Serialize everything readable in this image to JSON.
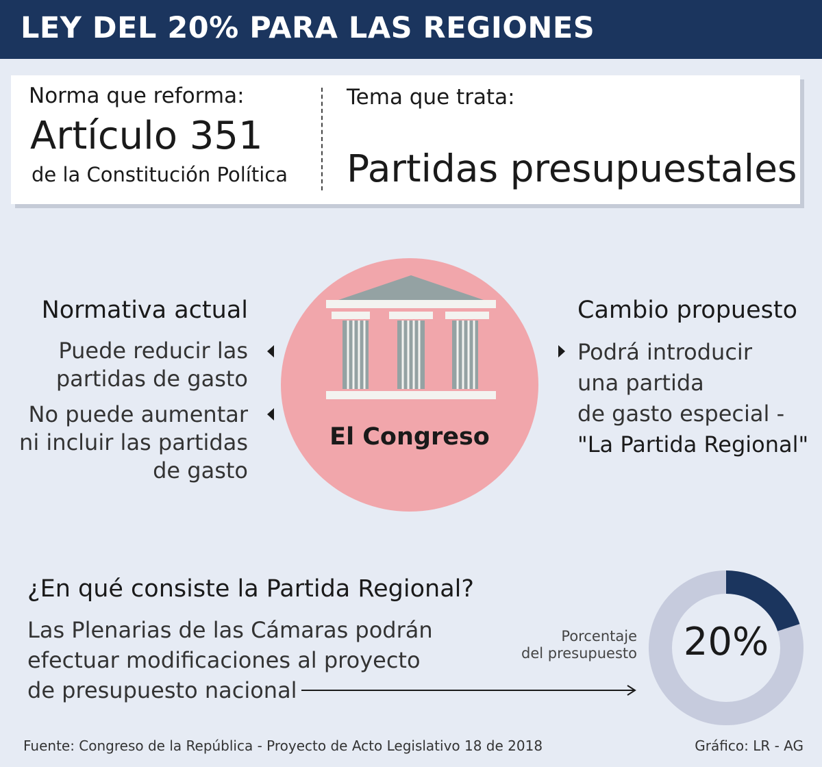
{
  "header": {
    "title": "LEY DEL 20% PARA LAS REGIONES"
  },
  "norma": {
    "label": "Norma que reforma:",
    "value": "Artículo 351",
    "sub": "de la Constitución Política"
  },
  "tema": {
    "label": "Tema que trata:",
    "value": "Partidas presupuestales"
  },
  "center": {
    "label": "El Congreso",
    "icon": "congress-building-icon"
  },
  "normativa_actual": {
    "title": "Normativa actual",
    "items": [
      {
        "lines": [
          "Puede reducir las",
          "partidas de gasto"
        ]
      },
      {
        "lines": [
          "No puede aumentar",
          "ni incluir las partidas",
          "de gasto"
        ]
      }
    ]
  },
  "cambio_propuesto": {
    "title": "Cambio propuesto",
    "lines": [
      "Podrá introducir",
      "una partida",
      "de gasto especial -",
      "\"La Partida Regional\""
    ]
  },
  "partida_regional": {
    "question": "¿En qué consiste la Partida Regional?",
    "lines": [
      "Las Plenarias de las Cámaras podrán",
      "efectuar modificaciones al proyecto",
      "de presupuesto nacional"
    ]
  },
  "porcentaje": {
    "label_lines": [
      "Porcentaje",
      "del presupuesto"
    ],
    "value_text": "20%",
    "fraction": 0.2
  },
  "footer": {
    "source": "Fuente: Congreso de la República - Proyecto de Acto Legislativo 18 de 2018",
    "credit": "Gráfico: LR - AG"
  },
  "colors": {
    "header_bg": "#1b355e",
    "page_bg": "#e6ebf4",
    "circle": "#f1a6ab",
    "building_roof": "#94a2a3",
    "building_base": "#f3f3f0",
    "donut_fill": "#1b355e",
    "donut_track": "#c6cbdd"
  }
}
